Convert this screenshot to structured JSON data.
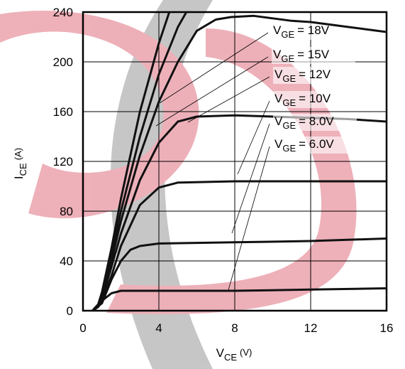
{
  "chart_data": {
    "type": "line",
    "x_label": {
      "symbol": "V",
      "subscript": "CE",
      "unit": "(V)"
    },
    "y_label": {
      "symbol": "I",
      "subscript": "CE",
      "unit": "(A)"
    },
    "xlim": [
      0,
      16
    ],
    "xticks": [
      0,
      4,
      8,
      12,
      16
    ],
    "ylim": [
      0,
      240
    ],
    "yticks": [
      0,
      40,
      80,
      120,
      160,
      200,
      240
    ],
    "grid": true,
    "series": [
      {
        "color": "#111111",
        "x": [
          0.5,
          0.8,
          1,
          1.5,
          2,
          3,
          4,
          4.55
        ],
        "values": [
          0,
          5,
          15,
          50,
          90,
          160,
          215,
          240
        ]
      },
      {
        "name_symbol": "V",
        "name_subscript": "GE",
        "name": "= 18V",
        "color": "#111111",
        "x": [
          0.5,
          0.8,
          1,
          1.5,
          2,
          3,
          4,
          5,
          5.45
        ],
        "values": [
          0,
          5,
          14,
          45,
          80,
          140,
          190,
          228,
          240
        ]
      },
      {
        "name_symbol": "V",
        "name_subscript": "GE",
        "name": "= 15V",
        "color": "#111111",
        "x": [
          0.5,
          0.8,
          1,
          1.5,
          2,
          3,
          4,
          5,
          6,
          7,
          7.8,
          9,
          10,
          11,
          12,
          13,
          14,
          15,
          16
        ],
        "values": [
          0,
          5,
          12,
          40,
          72,
          125,
          168,
          200,
          225,
          234,
          236,
          237,
          235,
          233,
          232,
          230,
          228,
          226,
          224
        ]
      },
      {
        "name_symbol": "V",
        "name_subscript": "GE",
        "name": "= 12V",
        "color": "#111111",
        "x": [
          0.5,
          0.8,
          1,
          1.5,
          2,
          3,
          4,
          5,
          6,
          8,
          10,
          12,
          14,
          16
        ],
        "values": [
          0,
          4,
          10,
          35,
          62,
          105,
          135,
          152,
          156,
          157,
          156,
          155,
          154,
          152
        ]
      },
      {
        "name_symbol": "V",
        "name_subscript": "GE",
        "name": "= 10V",
        "color": "#111111",
        "x": [
          0.5,
          1,
          1.5,
          2,
          3,
          4,
          5,
          8,
          12,
          16
        ],
        "values": [
          0,
          8,
          28,
          52,
          85,
          99,
          103,
          104,
          104,
          104
        ]
      },
      {
        "name_symbol": "V",
        "name_subscript": "GE",
        "name": "= 8.0V",
        "color": "#111111",
        "x": [
          0.5,
          1,
          1.5,
          2,
          2.5,
          3,
          4,
          8,
          12,
          16
        ],
        "values": [
          0,
          6,
          25,
          40,
          49,
          52,
          54,
          55,
          56,
          58
        ]
      },
      {
        "name_symbol": "V",
        "name_subscript": "GE",
        "name": "= 6.0V",
        "color": "#111111",
        "x": [
          0.5,
          0.8,
          1,
          1.5,
          2,
          4,
          8,
          12,
          16
        ],
        "values": [
          0,
          3,
          8,
          14,
          16,
          16,
          16,
          17,
          18
        ]
      }
    ]
  }
}
